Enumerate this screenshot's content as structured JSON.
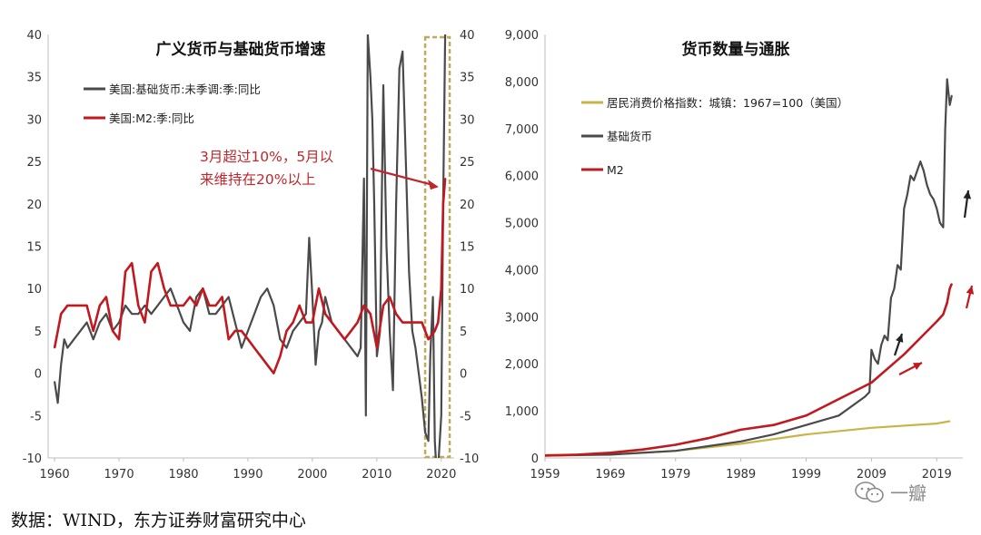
{
  "source_note": "数据：WIND，东方证券财富研究中心",
  "watermark": {
    "text": "一瓣",
    "icon": "wechat-icon"
  },
  "chart_data": [
    {
      "type": "line",
      "title": "广义货币与基础货币增速",
      "xlim": [
        1959,
        2022
      ],
      "ylim": [
        -10,
        40
      ],
      "x_ticks": [
        1960,
        1970,
        1980,
        1990,
        2000,
        2010,
        2020
      ],
      "y_ticks_left": [
        "40",
        "35",
        "30",
        "25",
        "20",
        "15",
        "10",
        "5",
        "0",
        "-5",
        "-10"
      ],
      "y_ticks_right": [
        "40",
        "35",
        "30",
        "25",
        "20",
        "15",
        "10",
        "5",
        "0",
        "-5",
        "-10"
      ],
      "grid": false,
      "legend_position": "top-left",
      "annotation": {
        "text_lines": [
          "3月超过10%，5月以",
          "来维持在20%以上"
        ],
        "color": "#c0262d",
        "arrow_to": [
          2019.6,
          22
        ]
      },
      "highlight": {
        "x_range": [
          2017.5,
          2021.3
        ],
        "y_range": [
          -10,
          40
        ],
        "color": "#bfa95a"
      },
      "series": [
        {
          "name": "美国:基础货币:未季调:季:同比",
          "color": "#4a4a4a",
          "x": [
            1960,
            1960.5,
            1961,
            1961.5,
            1962,
            1963,
            1964,
            1965,
            1966,
            1967,
            1968,
            1969,
            1970,
            1971,
            1972,
            1973,
            1974,
            1975,
            1976,
            1977,
            1978,
            1979,
            1980,
            1981,
            1982,
            1983,
            1984,
            1985,
            1986,
            1987,
            1988,
            1989,
            1990,
            1991,
            1992,
            1993,
            1994,
            1995,
            1996,
            1997,
            1998,
            1999,
            1999.5,
            2000,
            2000.5,
            2001,
            2001.5,
            2002,
            2003,
            2004,
            2005,
            2006,
            2007,
            2007.5,
            2008,
            2008.3,
            2008.6,
            2009,
            2009.3,
            2009.6,
            2010,
            2010.5,
            2011,
            2011.5,
            2012,
            2012.5,
            2013,
            2013.5,
            2014,
            2014.5,
            2015,
            2015.5,
            2016,
            2016.5,
            2017,
            2017.5,
            2018,
            2018.3,
            2018.7,
            2019,
            2019.3,
            2019.6,
            2020,
            2020.3,
            2020.6
          ],
          "values": [
            -1,
            -3.5,
            1,
            4,
            3,
            4,
            5,
            6,
            4,
            6,
            7,
            5,
            6,
            8,
            7,
            7,
            8,
            7,
            8,
            9,
            10,
            8,
            6,
            5,
            9,
            10,
            7,
            7,
            8,
            9,
            6,
            3,
            5,
            7,
            9,
            10,
            8,
            4,
            3,
            5,
            6,
            7,
            16,
            9,
            1,
            5,
            6,
            9,
            6,
            5,
            4,
            3,
            2,
            3,
            23,
            -5,
            40,
            35,
            30,
            20,
            2,
            5,
            34,
            15,
            5,
            -2,
            20,
            36,
            38,
            25,
            12,
            5,
            3,
            0,
            -3,
            -7,
            -8,
            2,
            9,
            -8,
            -12,
            -10,
            -5,
            20,
            40
          ]
        },
        {
          "name": "美国:M2:季:同比",
          "color": "#c0191f",
          "x": [
            1960,
            1961,
            1962,
            1963,
            1964,
            1965,
            1966,
            1967,
            1968,
            1969,
            1970,
            1971,
            1972,
            1973,
            1974,
            1975,
            1976,
            1977,
            1978,
            1979,
            1980,
            1981,
            1982,
            1983,
            1984,
            1985,
            1986,
            1987,
            1988,
            1989,
            1990,
            1991,
            1992,
            1993,
            1994,
            1995,
            1996,
            1997,
            1998,
            1999,
            2000,
            2001,
            2002,
            2003,
            2004,
            2005,
            2006,
            2007,
            2008,
            2009,
            2010,
            2011,
            2012,
            2013,
            2014,
            2015,
            2016,
            2017,
            2018,
            2019,
            2019.5,
            2020,
            2020.3,
            2020.6
          ],
          "values": [
            3,
            7,
            8,
            8,
            8,
            8,
            5,
            8,
            9,
            5,
            4,
            12,
            13,
            8,
            6,
            12,
            13,
            10,
            8,
            8,
            8,
            9,
            8,
            10,
            8,
            8,
            9,
            4,
            5,
            5,
            4,
            3,
            2,
            1,
            0,
            2,
            5,
            6,
            8,
            6,
            6,
            10,
            7,
            6,
            5,
            4,
            5,
            6,
            8,
            7,
            3,
            8,
            9,
            7,
            6,
            6,
            6,
            6,
            4,
            5,
            6,
            10,
            20,
            23
          ]
        }
      ]
    },
    {
      "type": "line",
      "title": "货币数量与通胀",
      "xlim": [
        1959,
        2023
      ],
      "ylim": [
        0,
        9000
      ],
      "x_ticks": [
        1959,
        1969,
        1979,
        1989,
        1999,
        2009,
        2019
      ],
      "y_ticks": [
        "0",
        "1,000",
        "2,000",
        "3,000",
        "4,000",
        "5,000",
        "6,000",
        "7,000",
        "8,000",
        "9,000"
      ],
      "grid": false,
      "legend_position": "top-left",
      "series": [
        {
          "name": "居民消费价格指数：城镇：1967=100（美国）",
          "color": "#c9b44a",
          "x": [
            1959,
            1969,
            1979,
            1989,
            1999,
            2009,
            2019,
            2021
          ],
          "values": [
            60,
            75,
            150,
            300,
            500,
            640,
            730,
            780
          ]
        },
        {
          "name": "基础货币",
          "color": "#4a4a4a",
          "x": [
            1959,
            1969,
            1979,
            1984,
            1989,
            1994,
            1999,
            2004,
            2008,
            2008.7,
            2009,
            2009.5,
            2010,
            2010.5,
            2011,
            2011.5,
            2012,
            2012.5,
            2013,
            2013.5,
            2014,
            2014.5,
            2015,
            2015.5,
            2016,
            2016.5,
            2017,
            2017.5,
            2018,
            2018.5,
            2019,
            2019.5,
            2020,
            2020.3,
            2020.6,
            2021,
            2021.3
          ],
          "values": [
            50,
            70,
            150,
            250,
            350,
            500,
            700,
            900,
            1300,
            1400,
            2300,
            2100,
            2000,
            2400,
            2600,
            2500,
            3400,
            3600,
            4100,
            4000,
            5300,
            5600,
            6000,
            5900,
            6100,
            6300,
            6100,
            5800,
            5600,
            5500,
            5300,
            5000,
            4900,
            7000,
            8050,
            7500,
            7700
          ]
        },
        {
          "name": "M2",
          "color": "#c0191f",
          "x": [
            1959,
            1964,
            1969,
            1974,
            1979,
            1984,
            1989,
            1994,
            1999,
            2004,
            2009,
            2014,
            2019,
            2020,
            2020.6,
            2021,
            2021.3
          ],
          "values": [
            50,
            70,
            110,
            180,
            280,
            420,
            600,
            700,
            900,
            1250,
            1600,
            2200,
            2900,
            3050,
            3300,
            3600,
            3700
          ]
        }
      ]
    }
  ]
}
